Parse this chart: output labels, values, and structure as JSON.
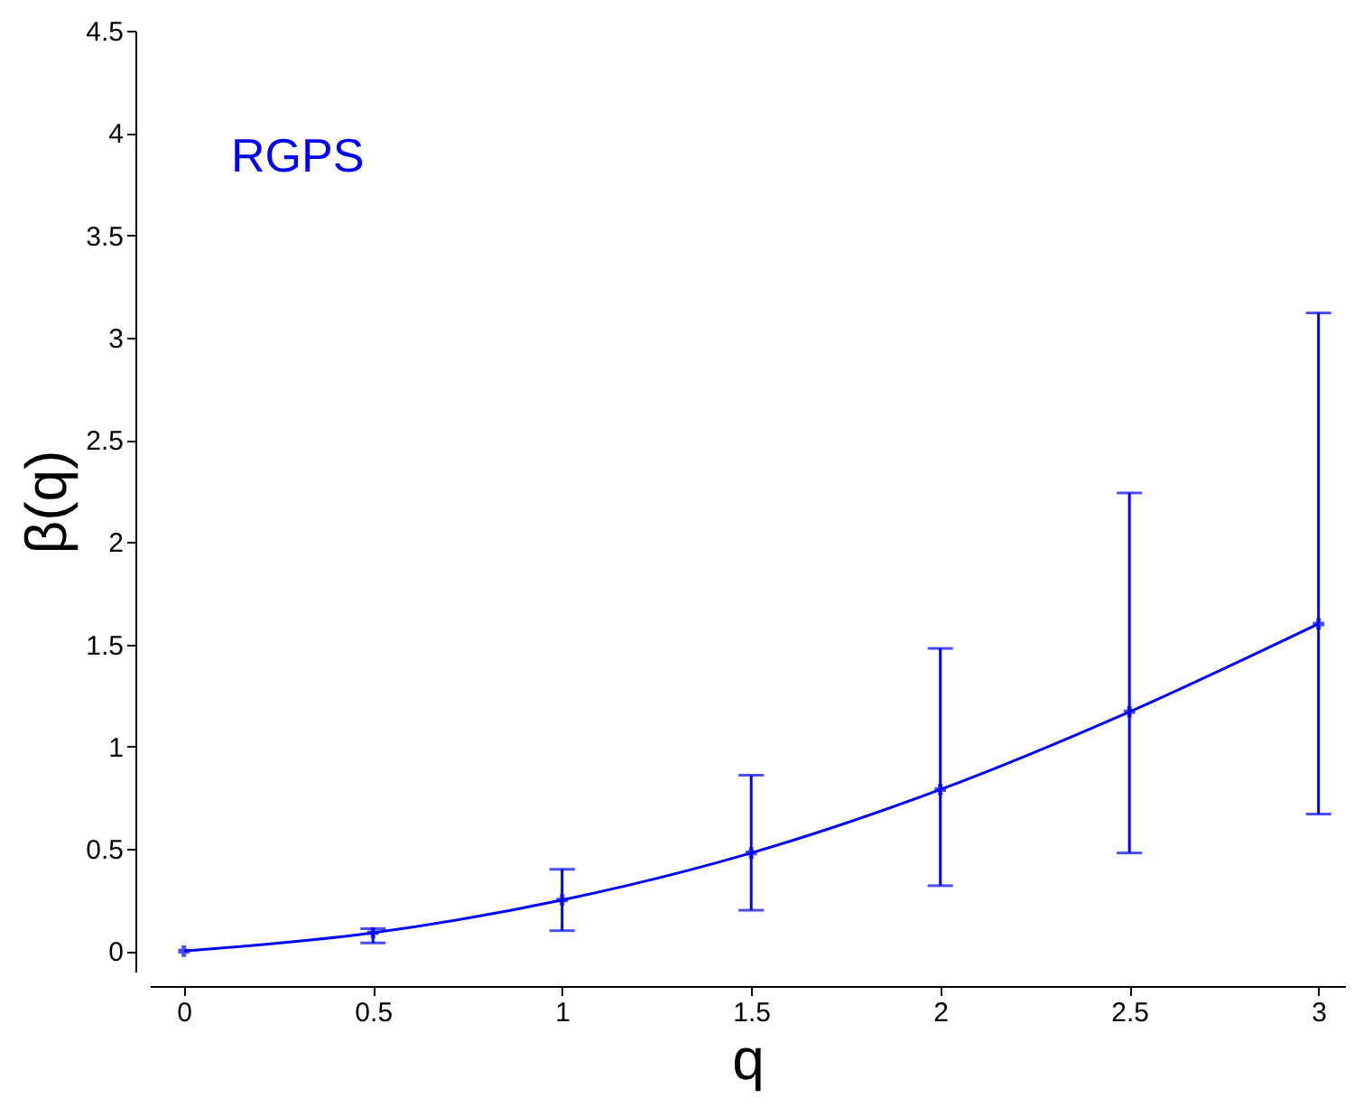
{
  "chart_data": {
    "type": "line",
    "xlabel": "q",
    "ylabel": "β(q)",
    "annotations": [
      "RGPS"
    ],
    "x": [
      0,
      0.5,
      1,
      1.5,
      2,
      2.5,
      3
    ],
    "series": [
      {
        "color": "#0000ff",
        "values": [
          0,
          0.09,
          0.25,
          0.48,
          0.79,
          1.17,
          1.6
        ],
        "errors": [
          null,
          [
            0.04,
            0.11
          ],
          [
            0.1,
            0.4
          ],
          [
            0.2,
            0.86
          ],
          [
            0.32,
            1.48
          ],
          [
            0.48,
            2.24
          ],
          [
            0.67,
            3.12
          ]
        ]
      }
    ],
    "marker": "cross",
    "line_style": "solid",
    "grid": false,
    "xlim": [
      -0.09,
      3.07
    ],
    "ylim": [
      -0.1,
      4.5
    ],
    "xticks": [
      0,
      0.5,
      1,
      1.5,
      2,
      2.5,
      3
    ],
    "yticks": [
      0,
      0.5,
      1,
      1.5,
      2,
      2.5,
      3,
      3.5,
      4,
      4.5
    ]
  }
}
